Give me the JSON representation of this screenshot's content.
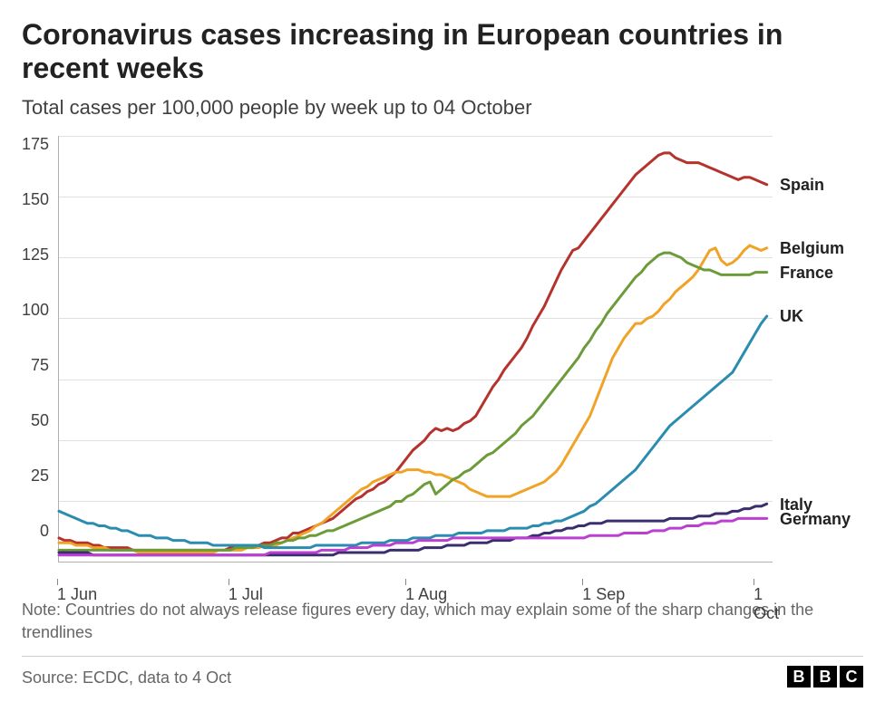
{
  "title": "Coronavirus cases increasing in European countries in recent weeks",
  "subtitle": "Total cases per 100,000 people by week up to 04 October",
  "note": "Note: Countries do not always release figures every day, which may explain some of the sharp changes in the trendlines",
  "source": "Source: ECDC, data to 4 Oct",
  "logo_letters": [
    "B",
    "B",
    "C"
  ],
  "chart": {
    "type": "line",
    "background_color": "#ffffff",
    "grid_color": "#e0e0e0",
    "axis_color": "#b0b0b0",
    "text_color": "#404040",
    "label_fontsize": 18,
    "title_fontsize": 32,
    "line_width": 3,
    "ylim": [
      0,
      175
    ],
    "ytick_step": 25,
    "y_ticks": [
      0,
      25,
      50,
      75,
      100,
      125,
      150,
      175
    ],
    "xlim": [
      0,
      125
    ],
    "x_ticks": [
      {
        "pos": 0,
        "label": "1 Jun"
      },
      {
        "pos": 30,
        "label": "1 Jul"
      },
      {
        "pos": 61,
        "label": "1 Aug"
      },
      {
        "pos": 92,
        "label": "1 Sep"
      },
      {
        "pos": 122,
        "label": "1 Oct"
      }
    ],
    "series": [
      {
        "name": "Spain",
        "label": "Spain",
        "color": "#b5322d",
        "label_y": 155,
        "values": [
          10,
          9,
          9,
          8,
          8,
          8,
          7,
          7,
          6,
          6,
          6,
          6,
          6,
          5,
          5,
          5,
          5,
          5,
          5,
          5,
          5,
          5,
          5,
          5,
          5,
          5,
          5,
          5,
          5,
          5,
          6,
          6,
          6,
          6,
          7,
          7,
          8,
          8,
          9,
          10,
          10,
          12,
          12,
          13,
          14,
          15,
          16,
          17,
          18,
          20,
          22,
          24,
          26,
          27,
          29,
          30,
          32,
          33,
          35,
          37,
          40,
          43,
          46,
          48,
          50,
          53,
          55,
          54,
          55,
          54,
          55,
          57,
          58,
          60,
          64,
          68,
          72,
          75,
          79,
          82,
          85,
          88,
          92,
          97,
          101,
          105,
          110,
          115,
          120,
          124,
          128,
          129,
          132,
          135,
          138,
          141,
          144,
          147,
          150,
          153,
          156,
          159,
          161,
          163,
          165,
          167,
          168,
          168,
          166,
          165,
          164,
          164,
          164,
          163,
          162,
          161,
          160,
          159,
          158,
          157,
          158,
          158,
          157,
          156,
          155
        ],
        "end_value": 155
      },
      {
        "name": "Belgium",
        "label": "Belgium",
        "color": "#f0a327",
        "label_y": 129,
        "values": [
          8,
          8,
          8,
          7,
          7,
          7,
          6,
          6,
          6,
          5,
          5,
          5,
          5,
          5,
          4,
          4,
          4,
          4,
          4,
          4,
          4,
          4,
          4,
          4,
          4,
          4,
          4,
          4,
          5,
          5,
          5,
          5,
          5,
          6,
          6,
          6,
          7,
          7,
          7,
          8,
          9,
          10,
          11,
          12,
          13,
          15,
          16,
          18,
          20,
          22,
          24,
          26,
          28,
          30,
          31,
          33,
          34,
          35,
          36,
          37,
          37,
          38,
          38,
          38,
          37,
          37,
          36,
          36,
          35,
          34,
          33,
          32,
          30,
          29,
          28,
          27,
          27,
          27,
          27,
          27,
          28,
          29,
          30,
          31,
          32,
          33,
          35,
          37,
          40,
          44,
          48,
          52,
          56,
          60,
          66,
          72,
          78,
          84,
          88,
          92,
          95,
          98,
          98,
          100,
          101,
          103,
          106,
          108,
          111,
          113,
          115,
          117,
          120,
          124,
          128,
          129,
          124,
          122,
          123,
          125,
          128,
          130,
          129,
          128,
          129
        ],
        "end_value": 129
      },
      {
        "name": "France",
        "label": "France",
        "color": "#6c9c3a",
        "label_y": 119,
        "values": [
          5,
          5,
          5,
          5,
          5,
          5,
          5,
          5,
          5,
          5,
          5,
          5,
          5,
          5,
          5,
          5,
          5,
          5,
          5,
          5,
          5,
          5,
          5,
          5,
          5,
          5,
          5,
          5,
          5,
          5,
          5,
          6,
          6,
          6,
          6,
          7,
          7,
          7,
          8,
          8,
          9,
          9,
          10,
          10,
          11,
          11,
          12,
          13,
          13,
          14,
          15,
          16,
          17,
          18,
          19,
          20,
          21,
          22,
          23,
          25,
          25,
          27,
          28,
          30,
          32,
          33,
          28,
          30,
          32,
          34,
          35,
          37,
          38,
          40,
          42,
          44,
          45,
          47,
          49,
          51,
          53,
          56,
          58,
          60,
          63,
          66,
          69,
          72,
          75,
          78,
          81,
          84,
          88,
          91,
          95,
          98,
          102,
          105,
          108,
          111,
          114,
          117,
          119,
          122,
          124,
          126,
          127,
          127,
          126,
          125,
          123,
          122,
          121,
          120,
          120,
          119,
          118,
          118,
          118,
          118,
          118,
          118,
          119,
          119,
          119
        ],
        "end_value": 119
      },
      {
        "name": "UK",
        "label": "UK",
        "color": "#2a8caf",
        "label_y": 101,
        "values": [
          21,
          20,
          19,
          18,
          17,
          16,
          16,
          15,
          15,
          14,
          14,
          13,
          13,
          12,
          11,
          11,
          11,
          10,
          10,
          10,
          9,
          9,
          9,
          8,
          8,
          8,
          8,
          7,
          7,
          7,
          7,
          7,
          7,
          7,
          7,
          7,
          6,
          6,
          6,
          6,
          6,
          6,
          6,
          6,
          6,
          7,
          7,
          7,
          7,
          7,
          7,
          7,
          7,
          8,
          8,
          8,
          8,
          8,
          9,
          9,
          9,
          9,
          10,
          10,
          10,
          10,
          11,
          11,
          11,
          11,
          12,
          12,
          12,
          12,
          12,
          13,
          13,
          13,
          13,
          14,
          14,
          14,
          14,
          15,
          15,
          16,
          16,
          17,
          17,
          18,
          19,
          20,
          21,
          23,
          24,
          26,
          28,
          30,
          32,
          34,
          36,
          38,
          41,
          44,
          47,
          50,
          53,
          56,
          58,
          60,
          62,
          64,
          66,
          68,
          70,
          72,
          74,
          76,
          78,
          82,
          86,
          90,
          94,
          98,
          101
        ],
        "end_value": 101
      },
      {
        "name": "Italy",
        "label": "Italy",
        "color": "#3b2e6e",
        "label_y": 24,
        "values": [
          4,
          4,
          4,
          4,
          4,
          4,
          3,
          3,
          3,
          3,
          3,
          3,
          3,
          3,
          3,
          3,
          3,
          3,
          3,
          3,
          3,
          3,
          3,
          3,
          3,
          3,
          3,
          3,
          3,
          3,
          3,
          3,
          3,
          3,
          3,
          3,
          3,
          3,
          3,
          3,
          3,
          3,
          3,
          3,
          3,
          3,
          3,
          3,
          3,
          4,
          4,
          4,
          4,
          4,
          4,
          4,
          4,
          4,
          5,
          5,
          5,
          5,
          5,
          5,
          6,
          6,
          6,
          6,
          7,
          7,
          7,
          7,
          8,
          8,
          8,
          8,
          9,
          9,
          9,
          9,
          10,
          10,
          10,
          11,
          11,
          12,
          12,
          13,
          13,
          14,
          14,
          15,
          15,
          16,
          16,
          16,
          17,
          17,
          17,
          17,
          17,
          17,
          17,
          17,
          17,
          17,
          17,
          18,
          18,
          18,
          18,
          18,
          19,
          19,
          19,
          20,
          20,
          20,
          21,
          21,
          22,
          22,
          23,
          23,
          24
        ],
        "end_value": 24
      },
      {
        "name": "Germany",
        "label": "Germany",
        "color": "#bb3fd1",
        "label_y": 18,
        "values": [
          3,
          3,
          3,
          3,
          3,
          3,
          3,
          3,
          3,
          3,
          3,
          3,
          3,
          3,
          3,
          3,
          3,
          3,
          3,
          3,
          3,
          3,
          3,
          3,
          3,
          3,
          3,
          3,
          3,
          3,
          3,
          3,
          3,
          3,
          3,
          3,
          3,
          4,
          4,
          4,
          4,
          4,
          4,
          4,
          4,
          4,
          5,
          5,
          5,
          5,
          5,
          6,
          6,
          6,
          6,
          7,
          7,
          7,
          7,
          8,
          8,
          8,
          8,
          9,
          9,
          9,
          9,
          9,
          9,
          10,
          10,
          10,
          10,
          10,
          10,
          10,
          10,
          10,
          10,
          10,
          10,
          10,
          10,
          10,
          10,
          10,
          10,
          10,
          10,
          10,
          10,
          10,
          10,
          11,
          11,
          11,
          11,
          11,
          11,
          12,
          12,
          12,
          12,
          12,
          13,
          13,
          13,
          14,
          14,
          14,
          15,
          15,
          15,
          16,
          16,
          16,
          17,
          17,
          17,
          18,
          18,
          18,
          18,
          18,
          18
        ],
        "end_value": 18
      }
    ]
  }
}
